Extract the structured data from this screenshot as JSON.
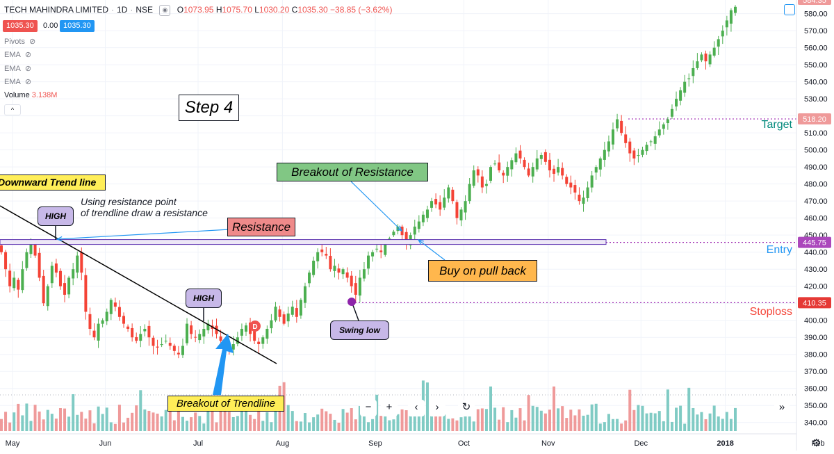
{
  "header": {
    "symbol": "TECH MAHINDRA LIMITED",
    "interval": "1D",
    "exchange": "NSE",
    "o_label": "O",
    "o": "1073.95",
    "h_label": "H",
    "h": "1075.70",
    "l_label": "L",
    "l": "1030.20",
    "c_label": "C",
    "c": "1035.30",
    "change": "−38.85 (−3.62%)",
    "sell_price": "1035.30",
    "spread": "0.00",
    "buy_price": "1035.30"
  },
  "indicators": [
    {
      "label": "Pivots"
    },
    {
      "label": "EMA"
    },
    {
      "label": "EMA"
    },
    {
      "label": "EMA"
    },
    {
      "label": "Volume",
      "value": "3.138M"
    }
  ],
  "annotations": {
    "step": "Step 4",
    "downward_trend_line": "Downward Trend line",
    "note_line1": "Using resistance point",
    "note_line2": "of trendline draw a resistance",
    "resistance": "Resistance",
    "breakout_resistance": "Breakout of Resistance",
    "buy_pull_back": "Buy on pull back",
    "breakout_trendline": "Breakout of Trendline",
    "high_1": "HIGH",
    "high_2": "HIGH",
    "swing_low": "Swing low",
    "dividend_marker": "D",
    "target": "Target",
    "entry": "Entry",
    "stoploss": "Stoploss"
  },
  "price_tags": {
    "top": "584.35",
    "target": "518.20",
    "entry": "445.75",
    "stoploss": "410.35"
  },
  "colors": {
    "up": "#26a69a",
    "down": "#ef5350",
    "up_candle": "#4caf50",
    "down_candle": "#f44336",
    "target_text": "#00897b",
    "entry_text": "#2196f3",
    "stop_text": "#f44336",
    "level_line": "#9c27b0"
  },
  "chart_data": {
    "type": "candlestick",
    "symbol": "TECH MAHINDRA LIMITED",
    "interval": "1D",
    "y_axis": {
      "ticks": [
        340,
        350,
        360,
        370,
        380,
        390,
        400,
        410,
        420,
        430,
        440,
        450,
        460,
        470,
        480,
        490,
        500,
        510,
        520,
        530,
        540,
        550,
        560,
        570,
        580
      ],
      "ylim": [
        335,
        588
      ]
    },
    "x_axis": {
      "ticks": [
        {
          "label": "May",
          "idx": 0
        },
        {
          "label": "Jun",
          "idx": 22
        },
        {
          "label": "Jul",
          "idx": 44
        },
        {
          "label": "Aug",
          "idx": 64
        },
        {
          "label": "Sep",
          "idx": 86
        },
        {
          "label": "Oct",
          "idx": 107
        },
        {
          "label": "Nov",
          "idx": 127
        },
        {
          "label": "Dec",
          "idx": 149
        },
        {
          "label": "2018",
          "idx": 169
        },
        {
          "label": "Feb",
          "idx": 191
        }
      ]
    },
    "closes": [
      440,
      430,
      420,
      425,
      418,
      430,
      440,
      445,
      438,
      425,
      410,
      420,
      432,
      428,
      420,
      415,
      425,
      430,
      438,
      428,
      405,
      395,
      390,
      398,
      400,
      405,
      412,
      408,
      402,
      398,
      395,
      390,
      388,
      392,
      395,
      390,
      385,
      384,
      386,
      388,
      385,
      382,
      380,
      385,
      398,
      392,
      390,
      392,
      395,
      398,
      395,
      392,
      388,
      384,
      382,
      386,
      390,
      395,
      397,
      392,
      388,
      386,
      390,
      395,
      400,
      408,
      402,
      398,
      404,
      408,
      402,
      412,
      420,
      428,
      435,
      440,
      440,
      438,
      430,
      432,
      428,
      430,
      425,
      420,
      415,
      425,
      430,
      438,
      440,
      442,
      440,
      445,
      448,
      452,
      455,
      450,
      446,
      450,
      455,
      458,
      462,
      465,
      470,
      468,
      465,
      472,
      478,
      470,
      460,
      465,
      470,
      480,
      488,
      485,
      478,
      480,
      490,
      492,
      488,
      485,
      490,
      494,
      498,
      495,
      490,
      485,
      490,
      495,
      497,
      493,
      488,
      486,
      490,
      485,
      480,
      478,
      475,
      470,
      472,
      478,
      485,
      490,
      495,
      500,
      505,
      512,
      518,
      510,
      504,
      498,
      495,
      497,
      500,
      503,
      505,
      508,
      512,
      515,
      518,
      524,
      530,
      535,
      540,
      542,
      548,
      552,
      556,
      552,
      556,
      560,
      565,
      570,
      576,
      582,
      584
    ],
    "levels": {
      "target": 518.2,
      "entry": 445.75,
      "stoploss": 410.35,
      "resistance": 445.75
    },
    "last_price": 584.35
  }
}
